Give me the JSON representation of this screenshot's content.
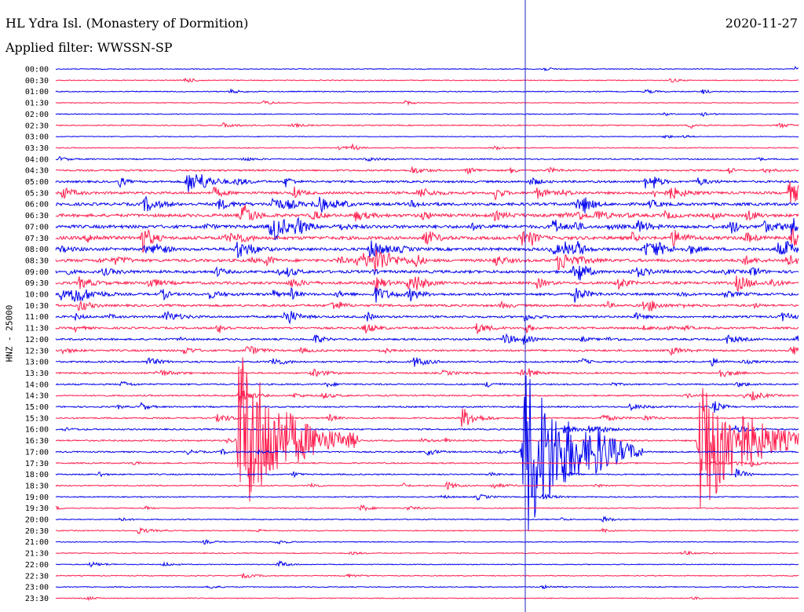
{
  "header": {
    "station": "HL Ydra Isl. (Monastery of Dormition)",
    "filter": "Applied filter: WWSSN-SP",
    "date": "2020-11-27"
  },
  "chart_data": {
    "type": "line",
    "ylabel": "HNZ - 25000",
    "rows": [
      "00:00",
      "00:30",
      "01:00",
      "01:30",
      "02:00",
      "02:30",
      "03:00",
      "03:30",
      "04:00",
      "04:30",
      "05:00",
      "05:30",
      "06:00",
      "06:30",
      "07:00",
      "07:30",
      "08:00",
      "08:30",
      "09:00",
      "09:30",
      "10:00",
      "10:30",
      "11:00",
      "11:30",
      "12:00",
      "12:30",
      "13:00",
      "13:30",
      "14:00",
      "14:30",
      "15:00",
      "15:30",
      "16:00",
      "16:30",
      "17:00",
      "17:30",
      "18:00",
      "18:30",
      "19:00",
      "19:30",
      "20:00",
      "20:30",
      "21:00",
      "21:30",
      "22:00",
      "22:30",
      "23:00",
      "23:30"
    ],
    "trace_colors": [
      "#0000ee",
      "#ff1e4e"
    ],
    "marker_color": "#2020c0",
    "row_noise": [
      0.3,
      0.4,
      0.5,
      0.3,
      0.4,
      0.6,
      0.3,
      0.5,
      0.8,
      1.2,
      1.6,
      2.0,
      2.4,
      2.5,
      2.8,
      2.8,
      2.5,
      2.4,
      2.3,
      2.2,
      2.0,
      1.8,
      1.6,
      1.5,
      1.4,
      1.4,
      1.2,
      1.1,
      1.0,
      1.0,
      1.0,
      1.0,
      1.0,
      1.0,
      0.9,
      0.8,
      0.8,
      0.7,
      0.6,
      0.6,
      0.5,
      0.5,
      0.4,
      0.4,
      0.4,
      0.4,
      0.4,
      0.4
    ],
    "events": [
      {
        "row": 33,
        "minute": 7.4,
        "amplitude": 125,
        "duration": 1.6
      },
      {
        "row": 34,
        "minute": 18.9,
        "amplitude": 120,
        "duration": 1.6
      },
      {
        "row": 33,
        "minute": 26.0,
        "amplitude": 110,
        "duration": 1.6
      },
      {
        "row": 31,
        "minute": 16.4,
        "amplitude": 14,
        "duration": 0.5
      },
      {
        "row": 34,
        "minute": 21.8,
        "amplitude": 16,
        "duration": 0.6
      },
      {
        "row": 17,
        "minute": 12.9,
        "amplitude": 16,
        "duration": 0.7
      },
      {
        "row": 10,
        "minute": 5.3,
        "amplitude": 14,
        "duration": 0.7
      },
      {
        "row": 20,
        "minute": 0.7,
        "amplitude": 14,
        "duration": 0.6
      },
      {
        "row": 16,
        "minute": 7.3,
        "amplitude": 12,
        "duration": 0.5
      },
      {
        "row": 12,
        "minute": 8.7,
        "amplitude": 10,
        "duration": 0.5
      },
      {
        "row": 11,
        "minute": 29.6,
        "amplitude": 14,
        "duration": 0.8
      },
      {
        "row": 17,
        "minute": 20.3,
        "amplitude": 12,
        "duration": 0.7
      },
      {
        "row": 16,
        "minute": 12.7,
        "amplitude": 13,
        "duration": 0.5
      },
      {
        "row": 20,
        "minute": 12.9,
        "amplitude": 10,
        "duration": 0.5
      },
      {
        "row": 24,
        "minute": 18.1,
        "amplitude": 8,
        "duration": 0.4
      },
      {
        "row": 22,
        "minute": 4.4,
        "amplitude": 7,
        "duration": 0.5
      },
      {
        "row": 29,
        "minute": 7.4,
        "amplitude": 12,
        "duration": 0.4
      },
      {
        "row": 36,
        "minute": 27.5,
        "amplitude": 8,
        "duration": 0.3
      },
      {
        "row": 44,
        "minute": 9.0,
        "amplitude": 5,
        "duration": 0.3
      },
      {
        "row": 5,
        "minute": 25.6,
        "amplitude": 4,
        "duration": 0.3
      },
      {
        "row": 37,
        "minute": 15.8,
        "amplitude": 6,
        "duration": 0.3
      },
      {
        "row": 39,
        "minute": 12.3,
        "amplitude": 5,
        "duration": 0.3
      }
    ]
  }
}
